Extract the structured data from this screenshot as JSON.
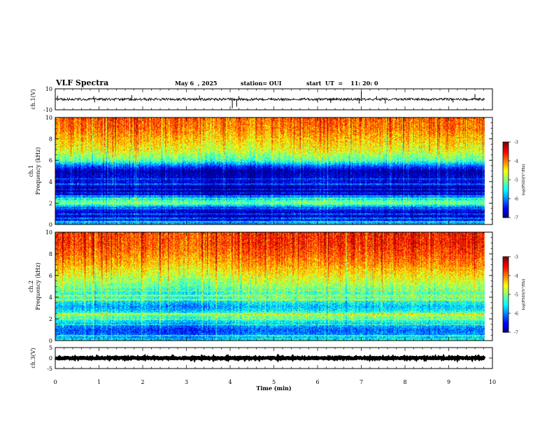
{
  "header": {
    "title": "VLF Spectra",
    "date": "May 6  , 2025",
    "station": "station= OUI",
    "start_ut": "start  UT  =    11: 20: 0"
  },
  "chart_data": [
    {
      "type": "line",
      "name": "ch1-waveform",
      "ylabel": "ch.1(V)",
      "ylim": [
        -10,
        10
      ],
      "yticks": [
        "10",
        "-10"
      ],
      "xlim": [
        0,
        10
      ],
      "data_end_min": 9.82,
      "baseline": 0,
      "noise_amplitude": 1.2,
      "spikes": [
        {
          "x": 0.05,
          "y": 3.5
        },
        {
          "x": 0.9,
          "y": -3
        },
        {
          "x": 0.88,
          "y": 3
        },
        {
          "x": 1.75,
          "y": 4
        },
        {
          "x": 3.3,
          "y": 3.5
        },
        {
          "x": 4.05,
          "y": -8.5
        },
        {
          "x": 4.15,
          "y": -7
        },
        {
          "x": 4.2,
          "y": 3
        },
        {
          "x": 6.0,
          "y": -3
        },
        {
          "x": 6.3,
          "y": -3.5
        },
        {
          "x": 6.95,
          "y": -4
        },
        {
          "x": 7.0,
          "y": 7.5
        },
        {
          "x": 7.35,
          "y": 3
        },
        {
          "x": 7.55,
          "y": -4
        },
        {
          "x": 9.1,
          "y": -3
        },
        {
          "x": 9.6,
          "y": 5
        }
      ]
    },
    {
      "type": "heatmap",
      "name": "ch1-spectrogram",
      "ylabel": "ch.1",
      "ylabel2": "Frequency (kHz)",
      "ylim": [
        0,
        10
      ],
      "yticks": [
        "0",
        "2",
        "4",
        "6",
        "8",
        "10"
      ],
      "xlim": [
        0,
        10
      ],
      "data_end_min": 9.82,
      "colorbar": {
        "label": "log(PSD)(V²/Hz)",
        "min": -7,
        "max": -3,
        "ticks": [
          "-3",
          "-4",
          "-5",
          "-6",
          "-7"
        ]
      },
      "band_profile": [
        [
          0.0,
          -5.6
        ],
        [
          0.5,
          -6.6
        ],
        [
          1.0,
          -6.8
        ],
        [
          1.5,
          -6.5
        ],
        [
          2.0,
          -5.0
        ],
        [
          2.3,
          -5.3
        ],
        [
          2.6,
          -6.3
        ],
        [
          3.0,
          -6.9
        ],
        [
          3.5,
          -6.8
        ],
        [
          4.0,
          -6.6
        ],
        [
          4.5,
          -6.7
        ],
        [
          5.0,
          -6.9
        ],
        [
          5.5,
          -6.2
        ],
        [
          6.0,
          -5.2
        ],
        [
          7.0,
          -4.6
        ],
        [
          8.0,
          -4.3
        ],
        [
          9.0,
          -4.0
        ],
        [
          10.0,
          -3.9
        ]
      ],
      "line_freqs_khz": [
        0.3,
        0.6,
        1.0,
        1.5,
        2.5,
        2.7,
        3.0,
        3.3,
        3.8,
        4.3
      ],
      "intensity_vs_time": [
        [
          0,
          0.0
        ],
        [
          2,
          0.1
        ],
        [
          4,
          -0.2
        ],
        [
          6,
          0.1
        ],
        [
          8,
          0.0
        ],
        [
          10,
          0.0
        ]
      ]
    },
    {
      "type": "heatmap",
      "name": "ch2-spectrogram",
      "ylabel": "ch.2",
      "ylabel2": "Frequency (kHz)",
      "ylim": [
        0,
        10
      ],
      "yticks": [
        "0",
        "2",
        "4",
        "6",
        "8",
        "10"
      ],
      "xlim": [
        0,
        10
      ],
      "data_end_min": 9.82,
      "colorbar": {
        "label": "log(PSD)(V²/Hz)",
        "min": -7,
        "max": -3,
        "ticks": [
          "-3",
          "-4",
          "-5",
          "-6",
          "-7"
        ]
      },
      "band_profile": [
        [
          0.0,
          -5.4
        ],
        [
          0.5,
          -6.0
        ],
        [
          1.0,
          -6.2
        ],
        [
          1.5,
          -5.8
        ],
        [
          2.0,
          -5.3
        ],
        [
          2.4,
          -5.0
        ],
        [
          2.8,
          -5.6
        ],
        [
          3.2,
          -5.8
        ],
        [
          3.6,
          -5.5
        ],
        [
          4.0,
          -5.2
        ],
        [
          4.5,
          -5.3
        ],
        [
          5.0,
          -5.0
        ],
        [
          6.0,
          -4.6
        ],
        [
          7.0,
          -4.2
        ],
        [
          8.0,
          -3.9
        ],
        [
          9.0,
          -3.7
        ],
        [
          10.0,
          -3.7
        ]
      ],
      "line_freqs_khz": [
        0.5,
        1.5,
        2.0,
        2.5,
        3.8,
        4.2,
        4.6
      ],
      "intensity_vs_time": [
        [
          0,
          0.0
        ],
        [
          2,
          -0.1
        ],
        [
          3,
          -0.3
        ],
        [
          4.5,
          0.1
        ],
        [
          6,
          0.05
        ],
        [
          8,
          0.1
        ],
        [
          10,
          0.1
        ]
      ]
    },
    {
      "type": "line",
      "name": "ch3-waveform",
      "ylabel": "ch.3(V)",
      "ylim": [
        -5,
        5
      ],
      "yticks": [
        "5",
        "0",
        "-5"
      ],
      "xlim": [
        0,
        10
      ],
      "data_end_min": 9.82,
      "baseline": 0,
      "noise_amplitude": 0.3,
      "spikes": []
    }
  ],
  "x_axis": {
    "label": "Time  (min)",
    "ticks": [
      "0",
      "1",
      "2",
      "3",
      "4",
      "5",
      "6",
      "7",
      "8",
      "9",
      "10"
    ]
  }
}
